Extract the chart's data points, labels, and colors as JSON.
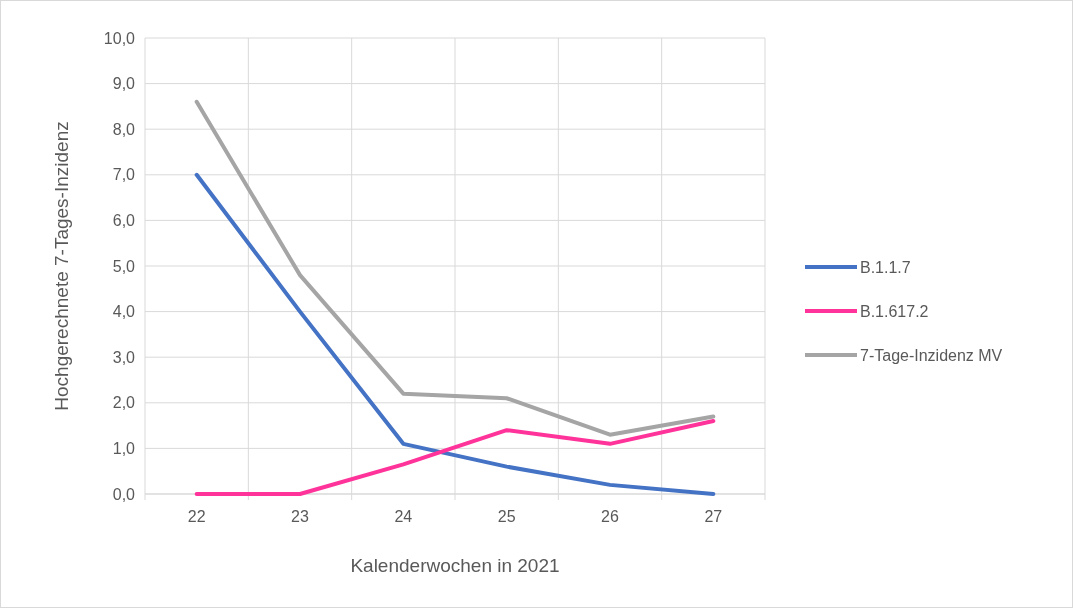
{
  "chart_data": {
    "type": "line",
    "xlabel": "Kalenderwochen in 2021",
    "ylabel": "Hochgerechnete 7-Tages-Inzidenz",
    "categories": [
      "22",
      "23",
      "24",
      "25",
      "26",
      "27"
    ],
    "series": [
      {
        "name": "B.1.1.7",
        "color": "#4472c4",
        "values": [
          7.0,
          4.0,
          1.1,
          0.6,
          0.2,
          0.0
        ]
      },
      {
        "name": "B.1.617.2",
        "color": "#ff3399",
        "values": [
          0.0,
          0.0,
          0.65,
          1.4,
          1.1,
          1.6
        ]
      },
      {
        "name": "7-Tage-Inzidenz MV",
        "color": "#a5a5a5",
        "values": [
          8.6,
          4.8,
          2.2,
          2.1,
          1.3,
          1.7
        ]
      }
    ],
    "ylim": [
      0,
      10
    ],
    "yticks": [
      {
        "value": 0,
        "label": "0,0"
      },
      {
        "value": 1,
        "label": "1,0"
      },
      {
        "value": 2,
        "label": "2,0"
      },
      {
        "value": 3,
        "label": "3,0"
      },
      {
        "value": 4,
        "label": "4,0"
      },
      {
        "value": 5,
        "label": "5,0"
      },
      {
        "value": 6,
        "label": "6,0"
      },
      {
        "value": 7,
        "label": "7,0"
      },
      {
        "value": 8,
        "label": "8,0"
      },
      {
        "value": 9,
        "label": "9,0"
      },
      {
        "value": 10,
        "label": "10,0"
      }
    ],
    "grid": true,
    "legend": "right",
    "marker": "none",
    "line_style": "solid"
  }
}
